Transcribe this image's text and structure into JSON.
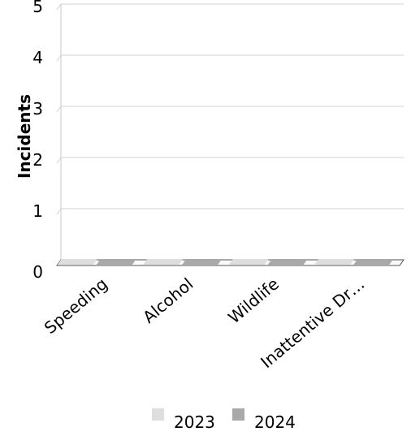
{
  "chart_data": {
    "type": "bar",
    "title": "",
    "xlabel": "",
    "ylabel": "Incidents",
    "ylim": [
      0,
      5
    ],
    "yticks": [
      "0",
      "1",
      "2",
      "3",
      "4",
      "5"
    ],
    "categories": [
      "Speeding",
      "Alcohol",
      "Wildlife",
      "Inattentive Dr…"
    ],
    "series": [
      {
        "name": "2023",
        "values": [
          0,
          0,
          0,
          0
        ],
        "color": "#dedede"
      },
      {
        "name": "2024",
        "values": [
          0,
          0,
          0,
          0
        ],
        "color": "#a9a9a9"
      }
    ],
    "grid": true,
    "legend_position": "bottom",
    "style": "3d"
  }
}
